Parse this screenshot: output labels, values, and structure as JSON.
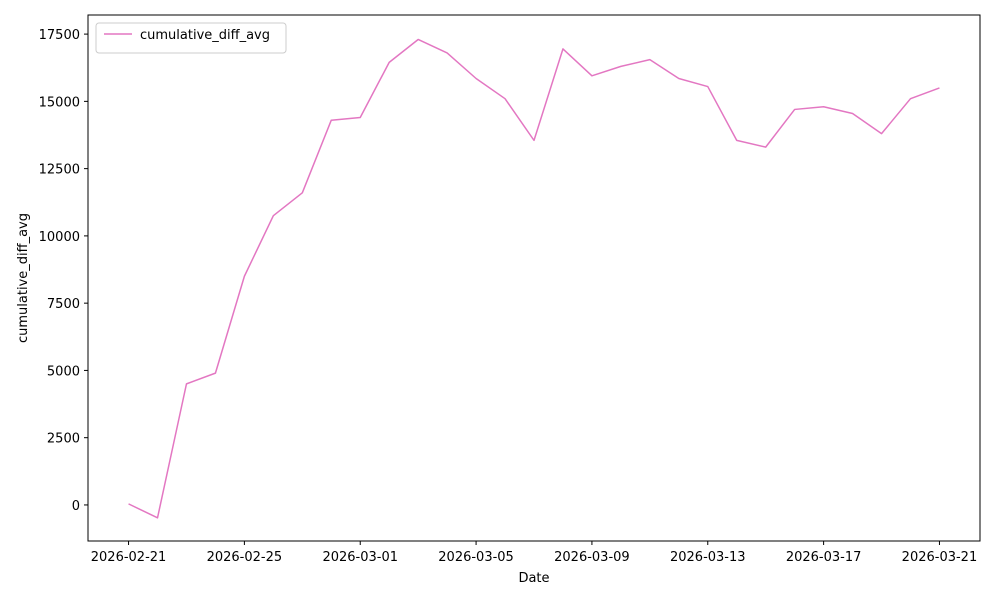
{
  "chart_data": {
    "type": "line",
    "x_label": "Date",
    "y_label": "cumulative_diff_avg",
    "x": [
      "2026-02-21",
      "2026-02-22",
      "2026-02-23",
      "2026-02-24",
      "2026-02-25",
      "2026-02-26",
      "2026-02-27",
      "2026-02-28",
      "2026-03-01",
      "2026-03-02",
      "2026-03-03",
      "2026-03-04",
      "2026-03-05",
      "2026-03-06",
      "2026-03-07",
      "2026-03-08",
      "2026-03-09",
      "2026-03-10",
      "2026-03-11",
      "2026-03-12",
      "2026-03-13",
      "2026-03-14",
      "2026-03-15",
      "2026-03-16",
      "2026-03-17",
      "2026-03-18",
      "2026-03-19",
      "2026-03-20",
      "2026-03-21"
    ],
    "series": [
      {
        "name": "cumulative_diff_avg",
        "color": "#e377c2",
        "values": [
          40,
          -480,
          4500,
          4900,
          8500,
          10750,
          11600,
          14300,
          14400,
          16450,
          17300,
          16800,
          15850,
          15100,
          13550,
          16950,
          15950,
          16300,
          16550,
          15850,
          15550,
          13550,
          13300,
          14700,
          14800,
          14550,
          13800,
          15100,
          15500
        ]
      }
    ],
    "xlim": [
      "2026-02-19T14:24",
      "2026-03-22T09:36"
    ],
    "xticks": [
      "2026-02-21",
      "2026-02-25",
      "2026-03-01",
      "2026-03-05",
      "2026-03-09",
      "2026-03-13",
      "2026-03-17",
      "2026-03-21"
    ],
    "ylim": [
      -1340,
      18210
    ],
    "yticks": [
      0,
      2500,
      5000,
      7500,
      10000,
      12500,
      15000,
      17500
    ],
    "legend": "upper left",
    "grid": false
  }
}
